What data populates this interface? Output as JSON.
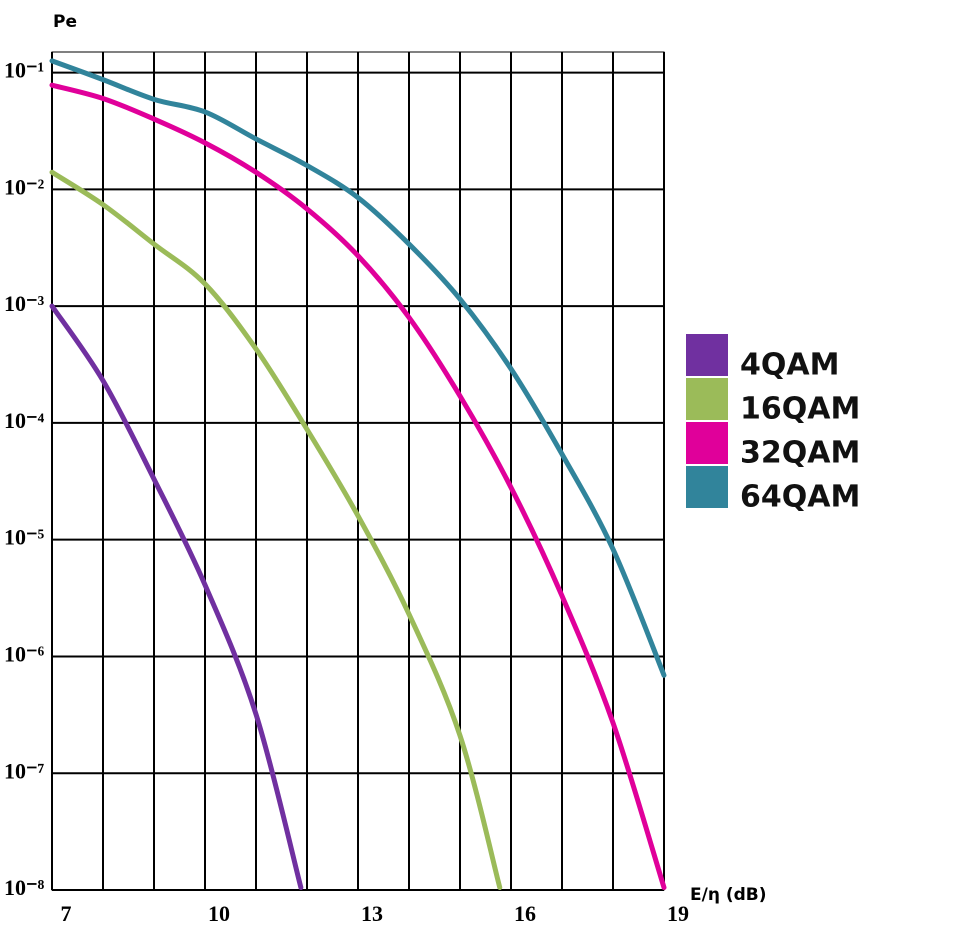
{
  "chart_data": {
    "type": "line",
    "y_scale": "log",
    "grid": true,
    "y_label": "Pe",
    "x_label": "E/η (dB)",
    "xlim": [
      7,
      19
    ],
    "xticks": [
      7,
      10,
      13,
      16,
      19
    ],
    "xgrid": [
      7,
      8,
      9,
      10,
      11,
      12,
      13,
      14,
      15,
      16,
      17,
      18,
      19
    ],
    "ylim": [
      1e-08,
      0.15
    ],
    "yticks": [
      {
        "value": 0.1,
        "label": "10⁻¹"
      },
      {
        "value": 0.01,
        "label": "10⁻²"
      },
      {
        "value": 0.001,
        "label": "10⁻³"
      },
      {
        "value": 0.0001,
        "label": "10⁻⁴"
      },
      {
        "value": 1e-05,
        "label": "10⁻⁵"
      },
      {
        "value": 1e-06,
        "label": "10⁻⁶"
      },
      {
        "value": 1e-07,
        "label": "10⁻⁷"
      },
      {
        "value": 1e-08,
        "label": "10⁻⁸"
      }
    ],
    "series": [
      {
        "name": "4QAM",
        "color": "#7030a0",
        "x": [
          7,
          8,
          9,
          10,
          11,
          11.88
        ],
        "values": [
          0.001,
          0.00023,
          3.3e-05,
          4.1e-06,
          3.2e-07,
          1.05e-08
        ]
      },
      {
        "name": "16QAM",
        "color": "#9bbb59",
        "x": [
          7,
          8,
          9,
          10,
          11,
          12,
          13,
          14,
          15,
          15.78
        ],
        "values": [
          0.014,
          0.0074,
          0.0034,
          0.00155,
          0.00043,
          8.8e-05,
          1.6e-05,
          2.3e-06,
          2.1e-07,
          1.05e-08
        ]
      },
      {
        "name": "32QAM",
        "color": "#e0009a",
        "x": [
          7,
          8,
          9,
          10,
          11,
          12,
          13,
          14,
          15,
          16,
          17,
          18,
          19
        ],
        "values": [
          0.078,
          0.06,
          0.04,
          0.025,
          0.014,
          0.0068,
          0.0027,
          0.0008,
          0.00017,
          2.8e-05,
          3.3e-06,
          2.7e-07,
          1.05e-08
        ]
      },
      {
        "name": "64QAM",
        "color": "#31849b",
        "x": [
          7,
          8,
          9,
          10,
          11,
          12,
          13,
          14,
          15,
          16,
          17,
          18,
          19
        ],
        "values": [
          0.126,
          0.087,
          0.059,
          0.046,
          0.027,
          0.016,
          0.0085,
          0.0034,
          0.00115,
          0.00029,
          5.4e-05,
          8.3e-06,
          6.9e-07
        ]
      }
    ]
  }
}
